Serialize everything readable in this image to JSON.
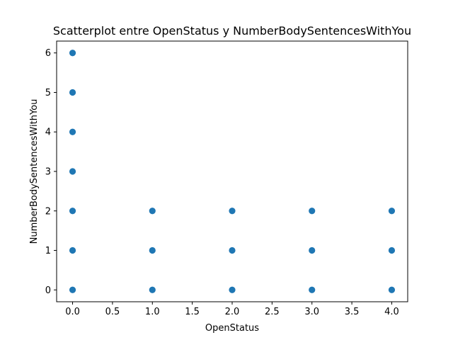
{
  "chart_data": {
    "type": "scatter",
    "title": "Scatterplot entre OpenStatus y NumberBodySentencesWithYou",
    "xlabel": "OpenStatus",
    "ylabel": "NumberBodySentencesWithYou",
    "xlim": [
      -0.2,
      4.2
    ],
    "ylim": [
      -0.3,
      6.3
    ],
    "xticks": [
      "0.0",
      "0.5",
      "1.0",
      "1.5",
      "2.0",
      "2.5",
      "3.0",
      "3.5",
      "4.0"
    ],
    "yticks": [
      "0",
      "1",
      "2",
      "3",
      "4",
      "5",
      "6"
    ],
    "grid": false,
    "legend": "none",
    "marker_color": "#1f77b4",
    "points": [
      {
        "x": 0,
        "y": 0
      },
      {
        "x": 0,
        "y": 1
      },
      {
        "x": 0,
        "y": 2
      },
      {
        "x": 0,
        "y": 3
      },
      {
        "x": 0,
        "y": 4
      },
      {
        "x": 0,
        "y": 5
      },
      {
        "x": 0,
        "y": 6
      },
      {
        "x": 1,
        "y": 0
      },
      {
        "x": 1,
        "y": 1
      },
      {
        "x": 1,
        "y": 2
      },
      {
        "x": 2,
        "y": 0
      },
      {
        "x": 2,
        "y": 1
      },
      {
        "x": 2,
        "y": 2
      },
      {
        "x": 3,
        "y": 0
      },
      {
        "x": 3,
        "y": 1
      },
      {
        "x": 3,
        "y": 2
      },
      {
        "x": 4,
        "y": 0
      },
      {
        "x": 4,
        "y": 1
      },
      {
        "x": 4,
        "y": 2
      }
    ]
  }
}
